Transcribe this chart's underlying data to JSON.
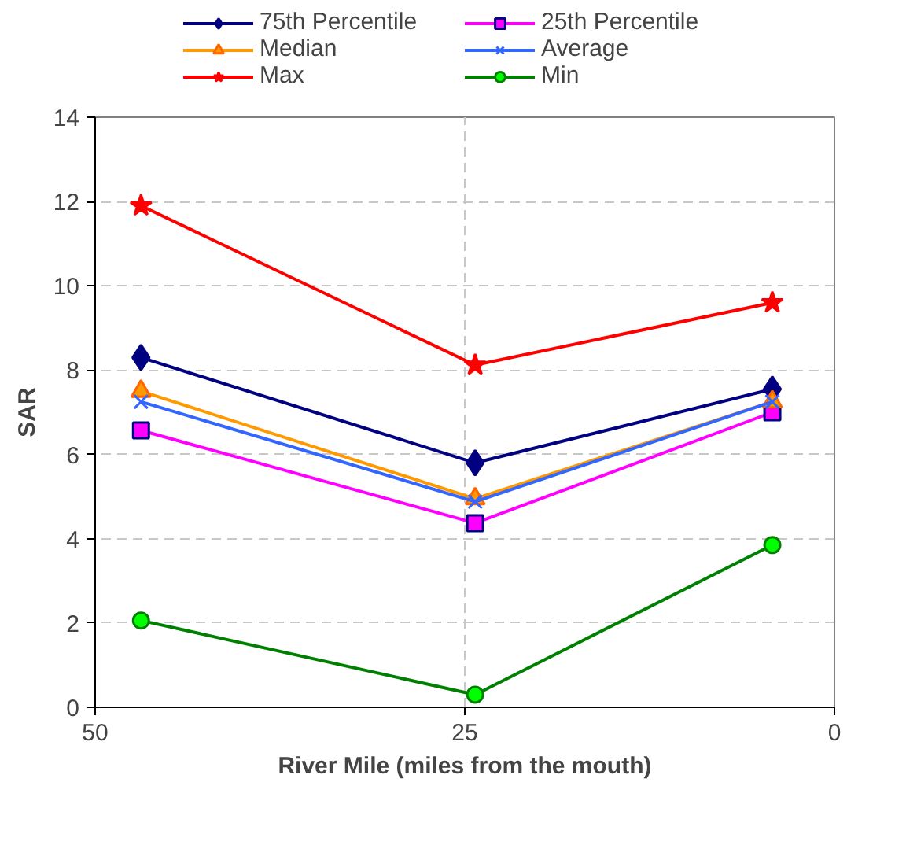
{
  "chart_data": {
    "type": "line",
    "xlabel": "River Mile (miles from the mouth)",
    "ylabel": "SAR",
    "x": [
      46.9,
      24.3,
      4.2
    ],
    "xlim": [
      50,
      0
    ],
    "xticks": [
      50,
      25,
      0
    ],
    "ylim": [
      0,
      14
    ],
    "yticks": [
      0,
      2,
      4,
      6,
      8,
      10,
      12,
      14
    ],
    "grid": true,
    "legend": "top",
    "line_style": "solid",
    "series": [
      {
        "name": "75th Percentile",
        "color": "#000080",
        "marker": "diamond",
        "values": [
          8.3,
          5.8,
          7.55
        ]
      },
      {
        "name": "25th Percentile",
        "color": "#ff00ff",
        "marker": "square",
        "values": [
          6.57,
          4.37,
          7.0
        ]
      },
      {
        "name": "Median",
        "color": "#ff9900",
        "marker": "triangle",
        "values": [
          7.5,
          4.95,
          7.25
        ]
      },
      {
        "name": "Average",
        "color": "#3366ff",
        "marker": "cross",
        "values": [
          7.25,
          4.88,
          7.25
        ]
      },
      {
        "name": "Max",
        "color": "#ff0000",
        "marker": "star",
        "values": [
          11.9,
          8.12,
          9.6
        ]
      },
      {
        "name": "Min",
        "color": "#008000",
        "marker": "circle",
        "values": [
          2.06,
          0.3,
          3.85
        ]
      }
    ]
  }
}
